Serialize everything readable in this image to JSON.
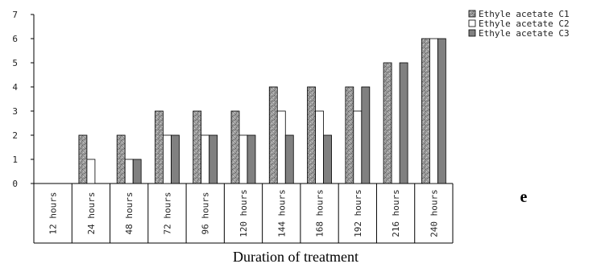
{
  "chart_data": {
    "type": "bar",
    "title": "",
    "xlabel": "Duration of treatment",
    "ylabel": "",
    "ylim": [
      0,
      7
    ],
    "yticks": [
      0,
      1,
      2,
      3,
      4,
      5,
      6,
      7
    ],
    "grid": false,
    "legend_position": "top-right",
    "categories": [
      "12 hours",
      "24 hours",
      "48 hours",
      "72 hours",
      "96 hours",
      "120 hours",
      "144 hours",
      "168 hours",
      "192 hours",
      "216 hours",
      "240 hours"
    ],
    "series": [
      {
        "name": "Ethyle acetate C1",
        "values": [
          0,
          2,
          2,
          3,
          3,
          3,
          4,
          4,
          4,
          5,
          6
        ],
        "color": "#9a9a9a",
        "pattern": "speckled"
      },
      {
        "name": "Ethyle acetate C2",
        "values": [
          0,
          1,
          1,
          2,
          2,
          2,
          3,
          3,
          3,
          0,
          6
        ],
        "color": "#ffffff",
        "pattern": "none"
      },
      {
        "name": "Ethyle acetate C3",
        "values": [
          0,
          0,
          1,
          2,
          2,
          2,
          2,
          2,
          4,
          5,
          6
        ],
        "color": "#808080",
        "pattern": "none"
      }
    ]
  },
  "panel_label": "e"
}
